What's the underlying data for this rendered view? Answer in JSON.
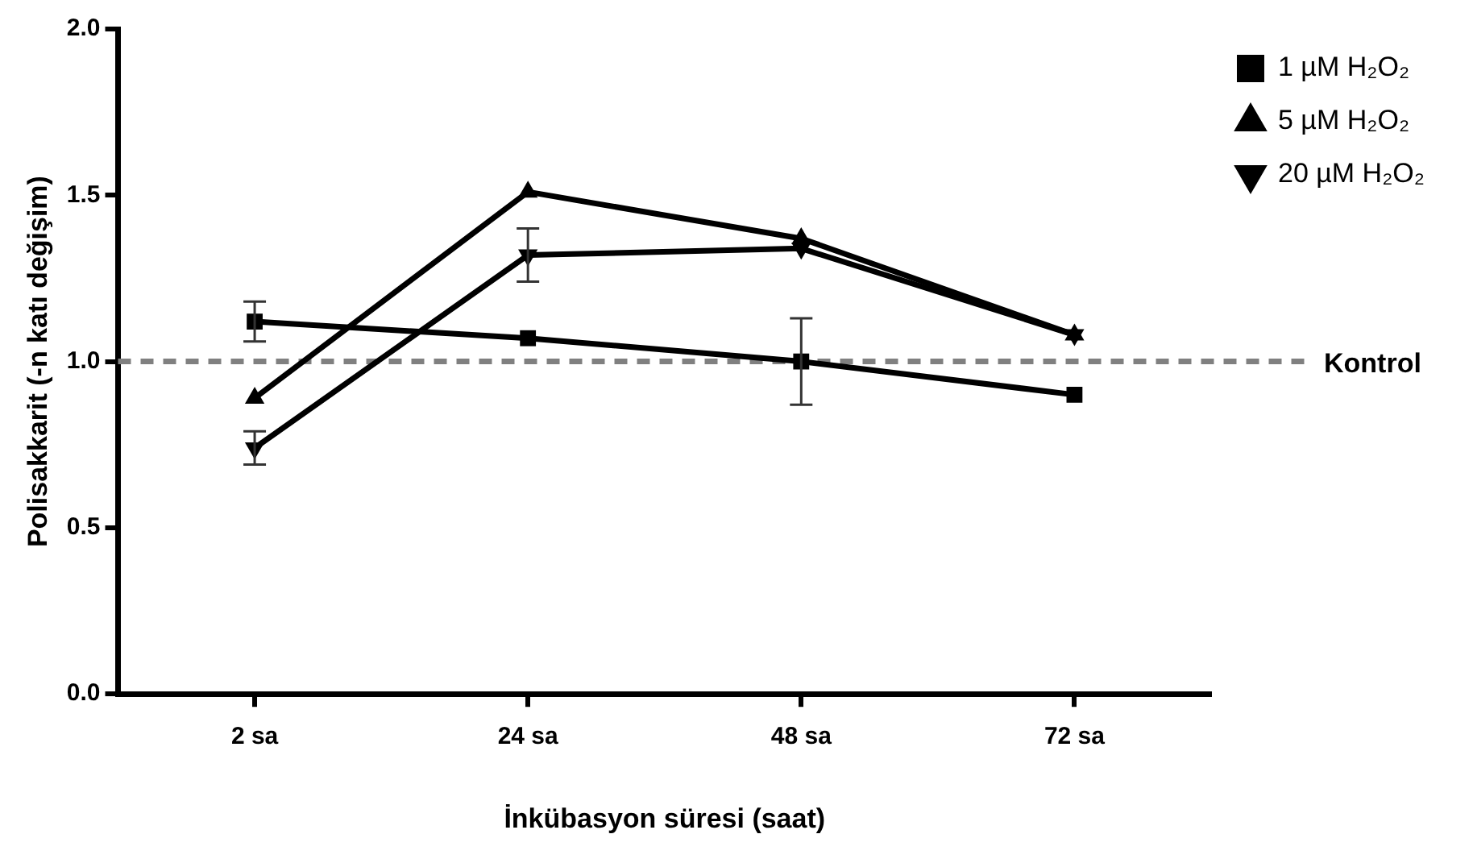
{
  "chart_data": {
    "type": "line",
    "xlabel": "İnkübasyon süresi (saat)",
    "ylabel": "Polisakkarit (-n katı değişim)",
    "categories": [
      "2 sa",
      "24 sa",
      "48 sa",
      "72 sa"
    ],
    "series": [
      {
        "name": "1 µM H₂O₂",
        "color": "#000000",
        "marker": "square",
        "values": [
          1.12,
          1.07,
          1.0,
          0.9
        ],
        "errors": [
          0.06,
          null,
          0.13,
          null
        ]
      },
      {
        "name": "5 µM H₂O₂",
        "color": "#000000",
        "marker": "triangle",
        "values": [
          0.89,
          1.51,
          1.37,
          1.08
        ]
      },
      {
        "name": "20 µM H₂O₂",
        "color": "#000000",
        "marker": "triangle-down",
        "values": [
          0.74,
          1.32,
          1.34,
          1.08
        ],
        "errors": [
          0.05,
          0.08,
          null,
          null
        ]
      }
    ],
    "ylim": [
      0,
      2
    ],
    "yticks": [
      {
        "value": 0,
        "label": "0.0"
      },
      {
        "value": 0.5,
        "label": "0.5"
      },
      {
        "value": 1,
        "label": "1.0"
      },
      {
        "value": 1.5,
        "label": "1.5"
      },
      {
        "value": 2,
        "label": "2.0"
      }
    ],
    "ref_lines": [
      {
        "axis": "y",
        "value": 1,
        "label": "Kontrol",
        "color": "#808080",
        "line_style": "dashed"
      }
    ],
    "legend": "top right",
    "line_style": "solid"
  }
}
